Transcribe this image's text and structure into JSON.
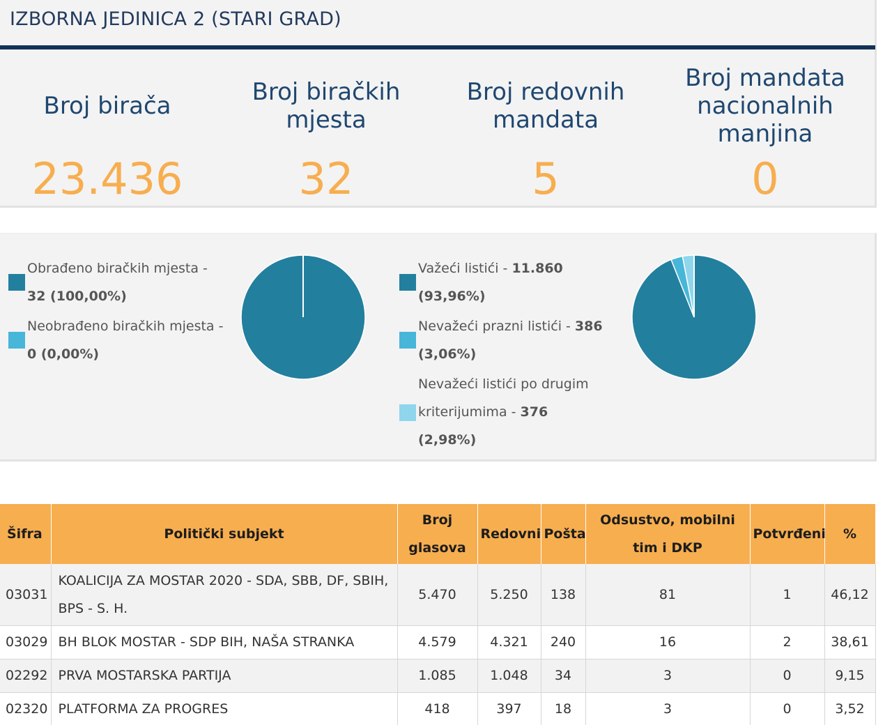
{
  "header": {
    "title": "IZBORNA JEDINICA 2 (STARI GRAD)"
  },
  "stats": [
    {
      "label_lines": [
        "Broj birača"
      ],
      "value": "23.436"
    },
    {
      "label_lines": [
        "Broj biračkih",
        "mjesta"
      ],
      "value": "32"
    },
    {
      "label_lines": [
        "Broj redovnih",
        "mandata"
      ],
      "value": "5"
    },
    {
      "label_lines": [
        "Broj mandata",
        "nacionalnih",
        "manjina"
      ],
      "value": "0"
    }
  ],
  "polling_stations": {
    "legend": [
      {
        "line1": "Obrađeno biračkih mjesta -",
        "line2": "32 (100,00%)",
        "color": "#237f9e"
      },
      {
        "line1": "Neobrađeno biračkih mjesta -",
        "line2": "0 (0,00%)",
        "color": "#47b6d8"
      }
    ],
    "pie_percent": [
      100.0,
      0.0
    ]
  },
  "ballots": {
    "legend": [
      {
        "line1_text": "Važeći listići - ",
        "line1_bold": "11.860",
        "line2": "(93,96%)",
        "color": "#237f9e"
      },
      {
        "line1_text": "Nevažeći prazni listići - ",
        "line1_bold": "386",
        "line2": "(3,06%)",
        "color": "#47b6d8"
      },
      {
        "line0": "Nevažeći listići po drugim",
        "line1_text": "kriterijumima - ",
        "line1_bold": "376",
        "line2": "(2,98%)",
        "color": "#8fd6ec"
      }
    ],
    "pie_percent": [
      93.96,
      3.06,
      2.98
    ]
  },
  "table": {
    "headers": [
      "Šifra",
      "Politički subjekt",
      "Broj glasova",
      "Redovni",
      "Pošta",
      "Odsustvo, mobilni tim i DKP",
      "Potvrđeni",
      "%"
    ],
    "rows": [
      [
        "03031",
        "KOALICIJA ZA MOSTAR 2020 - SDA, SBB, DF, SBIH, BPS - S. H.",
        "5.470",
        "5.250",
        "138",
        "81",
        "1",
        "46,12"
      ],
      [
        "03029",
        "BH BLOK MOSTAR - SDP BIH, NAŠA STRANKA",
        "4.579",
        "4.321",
        "240",
        "16",
        "2",
        "38,61"
      ],
      [
        "02292",
        "PRVA MOSTARSKA PARTIJA",
        "1.085",
        "1.048",
        "34",
        "3",
        "0",
        "9,15"
      ],
      [
        "02320",
        "PLATFORMA ZA PROGRES",
        "418",
        "397",
        "18",
        "3",
        "0",
        "3,52"
      ]
    ]
  }
}
